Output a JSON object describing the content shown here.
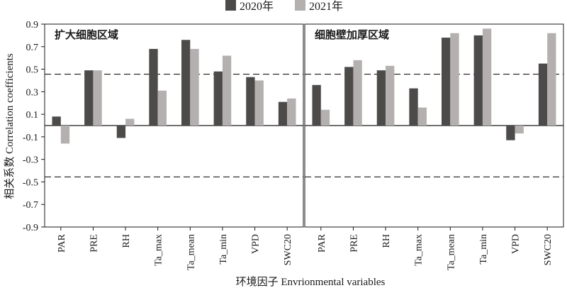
{
  "legend": {
    "series_2020": "2020年",
    "series_2021": "2021年"
  },
  "axes": {
    "ylabel": "相关系数 Correlation coefficients",
    "xlabel": "环境因子 Envrionmental variables"
  },
  "colors": {
    "series_2020": "#4d4a4a",
    "series_2021": "#b5b0b0"
  },
  "chart_data": [
    {
      "type": "bar",
      "title": "扩大细胞区域",
      "categories": [
        "PAR",
        "PRE",
        "RH",
        "Ta_max",
        "Ta_mean",
        "Ta_min",
        "VPD",
        "SWC20"
      ],
      "series": [
        {
          "name": "2020年",
          "values": [
            0.08,
            0.49,
            -0.11,
            0.68,
            0.76,
            0.48,
            0.43,
            0.21
          ]
        },
        {
          "name": "2021年",
          "values": [
            -0.16,
            0.49,
            0.06,
            0.31,
            0.68,
            0.62,
            0.4,
            0.24
          ]
        }
      ],
      "ylim": [
        -0.9,
        0.9
      ],
      "yticks": [
        0.9,
        0.7,
        0.5,
        0.3,
        0.1,
        -0.1,
        -0.3,
        -0.5,
        -0.7,
        -0.9
      ],
      "reference_lines": [
        0.456,
        -0.456
      ],
      "zero_line": true,
      "legend_position": "top-center"
    },
    {
      "type": "bar",
      "title": "细胞壁加厚区域",
      "categories": [
        "PAR",
        "PRE",
        "RH",
        "Ta_max",
        "Ta_mean",
        "Ta_min",
        "VPD",
        "SWC20"
      ],
      "series": [
        {
          "name": "2020年",
          "values": [
            0.36,
            0.52,
            0.49,
            0.33,
            0.78,
            0.8,
            -0.13,
            0.55
          ]
        },
        {
          "name": "2021年",
          "values": [
            0.14,
            0.58,
            0.53,
            0.16,
            0.82,
            0.86,
            -0.07,
            0.82
          ]
        }
      ],
      "ylim": [
        -0.9,
        0.9
      ],
      "reference_lines": [
        0.456,
        -0.456
      ],
      "zero_line": true
    }
  ]
}
